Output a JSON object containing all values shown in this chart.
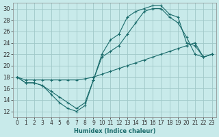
{
  "xlabel": "Humidex (Indice chaleur)",
  "bg_color": "#c8eaea",
  "grid_color": "#a0c8c8",
  "line_color": "#1a6b6b",
  "xlim": [
    -0.5,
    23.5
  ],
  "ylim": [
    11,
    31
  ],
  "xtick_labels": [
    "0",
    "1",
    "2",
    "3",
    "4",
    "5",
    "6",
    "7",
    "8",
    "9",
    "10",
    "11",
    "12",
    "13",
    "14",
    "15",
    "16",
    "17",
    "18",
    "19",
    "20",
    "21",
    "22",
    "23"
  ],
  "xtick_pos": [
    0,
    1,
    2,
    3,
    4,
    5,
    6,
    7,
    8,
    9,
    10,
    11,
    12,
    13,
    14,
    15,
    16,
    17,
    18,
    19,
    20,
    21,
    22,
    23
  ],
  "yticks": [
    12,
    14,
    16,
    18,
    20,
    22,
    24,
    26,
    28,
    30
  ],
  "curve1_x": [
    0,
    1,
    2,
    3,
    4,
    5,
    6,
    7,
    8,
    9,
    10,
    11,
    12,
    13,
    14,
    15,
    16,
    17,
    18,
    19,
    20,
    21,
    22,
    23
  ],
  "curve1_y": [
    18,
    17,
    17,
    16.5,
    15,
    13.5,
    12.5,
    12,
    13,
    17.5,
    22,
    24.5,
    25.5,
    28.5,
    29.5,
    30,
    30.5,
    30.5,
    29,
    28.5,
    24,
    23.5,
    21.5,
    22
  ],
  "curve2_x": [
    0,
    1,
    2,
    3,
    4,
    5,
    6,
    7,
    8,
    9,
    10,
    11,
    12,
    13,
    14,
    15,
    16,
    17,
    18,
    19,
    20,
    21,
    22,
    23
  ],
  "curve2_y": [
    18,
    17,
    17,
    16.5,
    15.5,
    14.5,
    13.5,
    12.5,
    13.5,
    17.5,
    21.5,
    22.5,
    23.5,
    25.5,
    27.5,
    29.5,
    30,
    30,
    28.5,
    27.5,
    25,
    22,
    21.5,
    22
  ],
  "curve3_x": [
    0,
    1,
    2,
    3,
    4,
    5,
    6,
    7,
    8,
    9,
    10,
    11,
    12,
    13,
    14,
    15,
    16,
    17,
    18,
    19,
    20,
    21,
    22,
    23
  ],
  "curve3_y": [
    18,
    17.5,
    17.5,
    17.5,
    17.5,
    17.5,
    17.5,
    17.5,
    17.7,
    18,
    18.5,
    19,
    19.5,
    20,
    20.5,
    21,
    21.5,
    22,
    22.5,
    23,
    23.5,
    24,
    21.5,
    22
  ]
}
